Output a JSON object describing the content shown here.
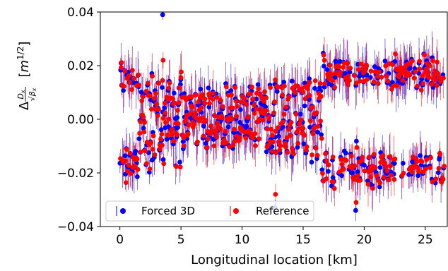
{
  "chart_data": {
    "type": "scatter",
    "title": "",
    "xlabel": "Longitudinal location [km]",
    "ylabel": "Δ(Dx/√βx)  [m^1/2]",
    "xlim": [
      -1.6,
      26.8
    ],
    "ylim": [
      -0.04,
      0.04
    ],
    "xticks": [
      0,
      5,
      10,
      15,
      20,
      25
    ],
    "yticks": [
      -0.04,
      -0.02,
      0.0,
      0.02,
      0.04
    ],
    "ytick_labels": [
      "−0.04",
      "−0.02",
      "0.00",
      "0.02",
      "0.04"
    ],
    "error_bars": true,
    "grid": false,
    "legend": "bottom-left, inside axes",
    "series": [
      {
        "name": "Forced 3D",
        "color": "#0000ff"
      },
      {
        "name": "Reference",
        "color": "#ff0000"
      }
    ]
  }
}
